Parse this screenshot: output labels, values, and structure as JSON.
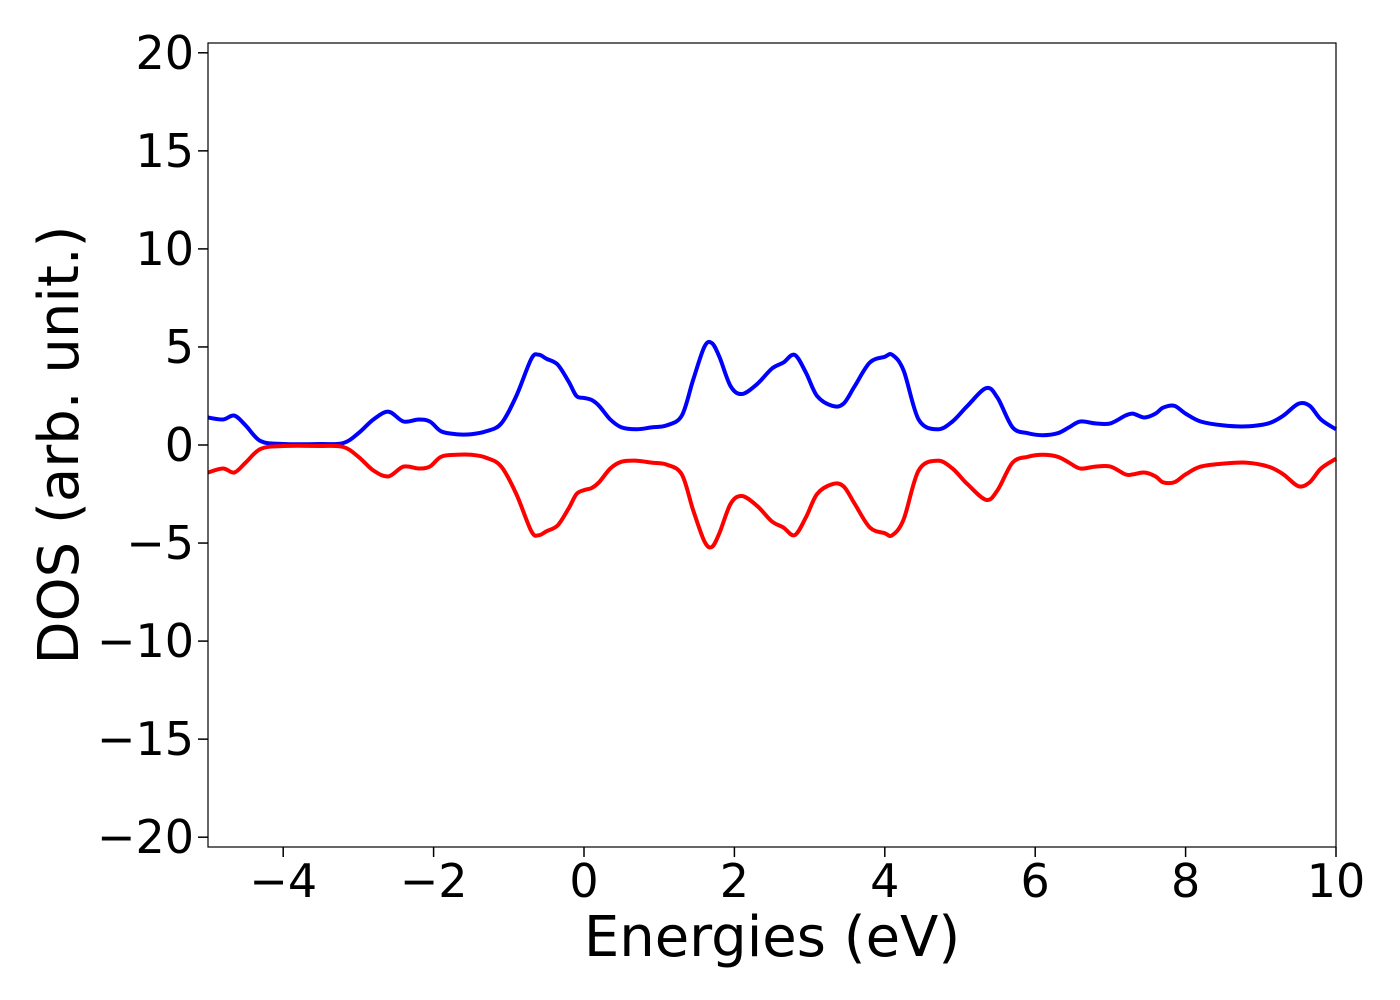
{
  "chart_data": {
    "type": "line",
    "title": "",
    "xlabel": "Energies (eV)",
    "ylabel": "DOS (arb. unit.)",
    "xlim": [
      -5,
      10
    ],
    "ylim": [
      -20.5,
      20.5
    ],
    "grid": false,
    "x_ticks": [
      -4,
      -2,
      0,
      2,
      4,
      6,
      8,
      10
    ],
    "x_tick_labels": [
      "−4",
      "−2",
      "0",
      "2",
      "4",
      "6",
      "8",
      "10"
    ],
    "y_ticks": [
      20,
      15,
      10,
      5,
      0,
      -5,
      -10,
      -15,
      -20
    ],
    "y_tick_labels": [
      "20",
      "15",
      "10",
      "5",
      "0",
      "−5",
      "−10",
      "−15",
      "−20"
    ],
    "series": [
      {
        "color": "#0000ff",
        "x": [
          -5.0,
          -4.8,
          -4.65,
          -4.5,
          -4.3,
          -4.0,
          -3.5,
          -3.2,
          -3.0,
          -2.8,
          -2.6,
          -2.4,
          -2.2,
          -2.05,
          -1.9,
          -1.7,
          -1.5,
          -1.3,
          -1.1,
          -0.9,
          -0.7,
          -0.6,
          -0.5,
          -0.35,
          -0.2,
          -0.1,
          0.0,
          0.1,
          0.2,
          0.35,
          0.5,
          0.7,
          0.9,
          1.1,
          1.3,
          1.45,
          1.6,
          1.7,
          1.8,
          1.95,
          2.1,
          2.3,
          2.5,
          2.65,
          2.8,
          2.95,
          3.1,
          3.3,
          3.45,
          3.6,
          3.8,
          4.0,
          4.1,
          4.25,
          4.45,
          4.7,
          4.9,
          5.1,
          5.35,
          5.5,
          5.7,
          5.9,
          6.1,
          6.3,
          6.45,
          6.6,
          6.8,
          7.0,
          7.2,
          7.3,
          7.45,
          7.6,
          7.7,
          7.85,
          8.0,
          8.2,
          8.5,
          8.8,
          9.1,
          9.3,
          9.5,
          9.65,
          9.8,
          10.0
        ],
        "y": [
          1.4,
          1.3,
          1.5,
          1.0,
          0.2,
          0.05,
          0.05,
          0.1,
          0.6,
          1.3,
          1.7,
          1.2,
          1.3,
          1.2,
          0.7,
          0.55,
          0.55,
          0.7,
          1.1,
          2.5,
          4.4,
          4.6,
          4.4,
          4.1,
          3.2,
          2.5,
          2.4,
          2.3,
          2.0,
          1.3,
          0.9,
          0.8,
          0.9,
          1.0,
          1.5,
          3.3,
          5.0,
          5.2,
          4.5,
          3.0,
          2.6,
          3.1,
          3.9,
          4.2,
          4.6,
          3.7,
          2.5,
          2.0,
          2.1,
          3.0,
          4.2,
          4.5,
          4.6,
          3.8,
          1.3,
          0.8,
          1.2,
          2.0,
          2.9,
          2.4,
          0.9,
          0.6,
          0.5,
          0.6,
          0.9,
          1.2,
          1.1,
          1.1,
          1.5,
          1.6,
          1.4,
          1.6,
          1.9,
          2.0,
          1.6,
          1.2,
          1.0,
          0.95,
          1.1,
          1.5,
          2.1,
          2.0,
          1.3,
          0.8
        ]
      },
      {
        "color": "#ff0000",
        "x": [
          -5.0,
          -4.8,
          -4.65,
          -4.5,
          -4.3,
          -4.0,
          -3.5,
          -3.2,
          -3.0,
          -2.8,
          -2.6,
          -2.4,
          -2.2,
          -2.05,
          -1.9,
          -1.7,
          -1.5,
          -1.3,
          -1.1,
          -0.9,
          -0.7,
          -0.6,
          -0.5,
          -0.35,
          -0.2,
          -0.1,
          0.0,
          0.1,
          0.2,
          0.35,
          0.5,
          0.7,
          0.9,
          1.1,
          1.3,
          1.45,
          1.6,
          1.7,
          1.8,
          1.95,
          2.1,
          2.3,
          2.5,
          2.65,
          2.8,
          2.95,
          3.1,
          3.3,
          3.45,
          3.6,
          3.8,
          4.0,
          4.1,
          4.25,
          4.45,
          4.7,
          4.9,
          5.1,
          5.35,
          5.5,
          5.7,
          5.9,
          6.1,
          6.3,
          6.45,
          6.6,
          6.8,
          7.0,
          7.2,
          7.3,
          7.45,
          7.6,
          7.7,
          7.85,
          8.0,
          8.2,
          8.5,
          8.8,
          9.1,
          9.3,
          9.5,
          9.65,
          9.8,
          10.0
        ],
        "y": [
          -1.4,
          -1.2,
          -1.4,
          -0.9,
          -0.2,
          -0.05,
          -0.05,
          -0.1,
          -0.6,
          -1.3,
          -1.6,
          -1.1,
          -1.2,
          -1.1,
          -0.6,
          -0.5,
          -0.5,
          -0.65,
          -1.1,
          -2.5,
          -4.4,
          -4.6,
          -4.4,
          -4.1,
          -3.2,
          -2.5,
          -2.3,
          -2.2,
          -1.9,
          -1.2,
          -0.85,
          -0.8,
          -0.9,
          -1.0,
          -1.5,
          -3.3,
          -4.9,
          -5.2,
          -4.5,
          -3.0,
          -2.6,
          -3.1,
          -3.9,
          -4.2,
          -4.6,
          -3.7,
          -2.5,
          -2.0,
          -2.1,
          -3.0,
          -4.2,
          -4.5,
          -4.6,
          -3.8,
          -1.3,
          -0.8,
          -1.2,
          -2.0,
          -2.8,
          -2.3,
          -0.9,
          -0.6,
          -0.5,
          -0.6,
          -0.9,
          -1.2,
          -1.1,
          -1.1,
          -1.5,
          -1.5,
          -1.4,
          -1.6,
          -1.9,
          -1.9,
          -1.5,
          -1.1,
          -0.95,
          -0.9,
          -1.1,
          -1.5,
          -2.1,
          -1.9,
          -1.2,
          -0.7
        ]
      }
    ]
  }
}
